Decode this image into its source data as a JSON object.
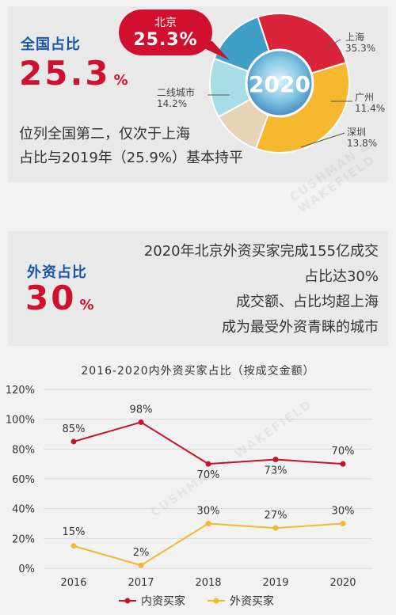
{
  "top": {
    "heading": "全国占比",
    "share": "25.3",
    "share_unit": "%",
    "note_line1": "位列全国第二，仅次于上海",
    "note_line2": "占比与2019年（25.9%）基本持平",
    "callout_city": "北京",
    "callout_value": "25.3%",
    "pie_center": "2020",
    "pie_labels": [
      {
        "city": "上海",
        "value": "35.3%"
      },
      {
        "city": "广州",
        "value": "11.4%"
      },
      {
        "city": "深圳",
        "value": "13.8%"
      },
      {
        "city": "二线城市",
        "value": "14.2%"
      }
    ]
  },
  "middle": {
    "heading": "外资占比",
    "share": "30",
    "share_unit": "%",
    "lines": [
      "2020年北京外资买家完成155亿成交",
      "占比达30%",
      "成交额、占比均超上海",
      "成为最受外资青睐的城市"
    ]
  },
  "colors": {
    "red": "#d0102e",
    "blue": "#1a56a8",
    "shanghai": "#f6b82e",
    "guangzhou": "#e8d2b8",
    "shenzhen": "#a6dde6",
    "tier2": "#3f9fc6",
    "beijing": "#d9243a",
    "domestic_line": "#c8102e",
    "foreign_line": "#f5b82e"
  },
  "chart_data": [
    {
      "type": "pie",
      "title": "2020",
      "categories": [
        "北京",
        "上海",
        "广州",
        "深圳",
        "二线城市"
      ],
      "values": [
        25.3,
        35.3,
        11.4,
        13.8,
        14.2
      ]
    },
    {
      "type": "line",
      "title": "2016-2020内外资买家占比（按成交金额）",
      "x": [
        "2016",
        "2017",
        "2018",
        "2019",
        "2020"
      ],
      "ylim": [
        0,
        120
      ],
      "yticks": [
        "0%",
        "20%",
        "40%",
        "60%",
        "80%",
        "100%",
        "120%"
      ],
      "series": [
        {
          "name": "内资买家",
          "values": [
            85,
            98,
            70,
            73,
            70
          ],
          "labels": [
            "85%",
            "98%",
            "70%",
            "73%",
            "70%"
          ]
        },
        {
          "name": "外资买家",
          "values": [
            15,
            2,
            30,
            27,
            30
          ],
          "labels": [
            "15%",
            "2%",
            "30%",
            "27%",
            "30%"
          ]
        }
      ],
      "legend": "bottom"
    }
  ]
}
